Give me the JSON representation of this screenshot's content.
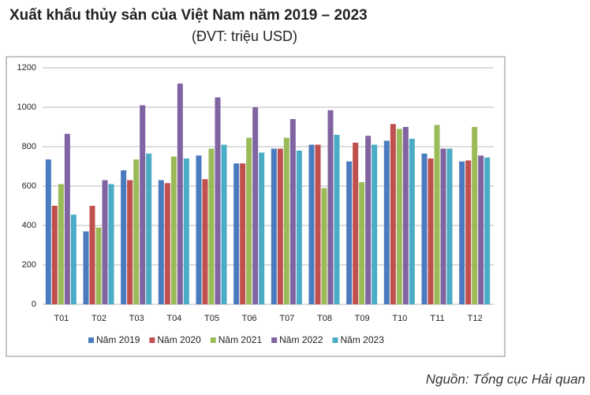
{
  "chart_data": {
    "type": "bar",
    "title": "Xuất khẩu thủy sản của Việt Nam năm 2019 – 2023",
    "subtitle": "(ĐVT: triệu USD)",
    "source": "Nguồn: Tổng cục Hải quan",
    "categories": [
      "T01",
      "T02",
      "T03",
      "T04",
      "T05",
      "T06",
      "T07",
      "T08",
      "T09",
      "T10",
      "T11",
      "T12"
    ],
    "series": [
      {
        "name": "Năm 2019",
        "color": "#4a7bbf",
        "values": [
          735,
          370,
          680,
          630,
          755,
          715,
          790,
          810,
          725,
          830,
          765,
          725
        ]
      },
      {
        "name": "Năm 2020",
        "color": "#c0504d",
        "values": [
          500,
          500,
          630,
          615,
          635,
          715,
          790,
          810,
          820,
          915,
          740,
          730
        ]
      },
      {
        "name": "Năm 2021",
        "color": "#9bbb59",
        "values": [
          610,
          390,
          735,
          750,
          790,
          845,
          845,
          590,
          620,
          890,
          910,
          900
        ]
      },
      {
        "name": "Năm 2022",
        "color": "#8064a2",
        "values": [
          865,
          630,
          1010,
          1120,
          1050,
          1000,
          940,
          985,
          855,
          900,
          790,
          755
        ]
      },
      {
        "name": "Năm 2023",
        "color": "#4bacc6",
        "values": [
          455,
          610,
          765,
          740,
          810,
          770,
          780,
          860,
          810,
          840,
          790,
          745
        ]
      }
    ],
    "ylim": [
      0,
      1200
    ],
    "yticks": [
      0,
      200,
      400,
      600,
      800,
      1000,
      1200
    ],
    "grid": true
  }
}
